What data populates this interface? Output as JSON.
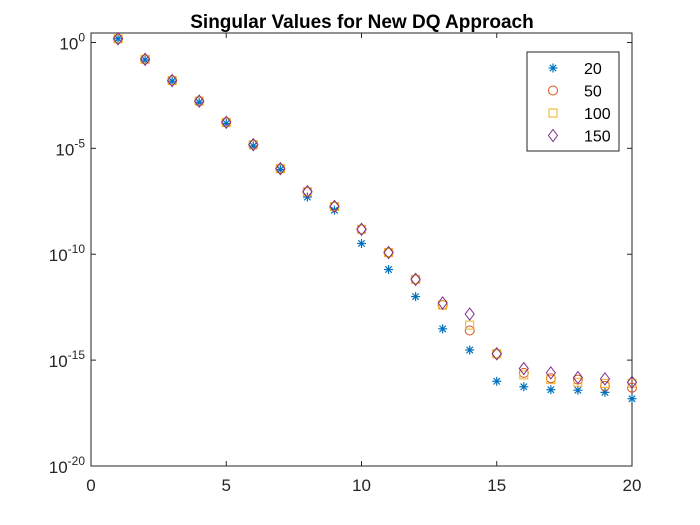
{
  "chart_data": {
    "type": "scatter",
    "title": "Singular Values for New DQ Approach",
    "xlabel": "",
    "ylabel": "",
    "xlim": [
      0,
      20
    ],
    "ylim": [
      1e-20,
      3
    ],
    "yscale": "log",
    "grid": false,
    "legend_position": "top-right",
    "x_ticks": [
      0,
      5,
      10,
      15,
      20
    ],
    "y_ticks": [
      {
        "base": "10",
        "exp": "0",
        "value": 1
      },
      {
        "base": "10",
        "exp": "-5",
        "value": 1e-05
      },
      {
        "base": "10",
        "exp": "-10",
        "value": 1e-10
      },
      {
        "base": "10",
        "exp": "-15",
        "value": 1e-15
      },
      {
        "base": "10",
        "exp": "-20",
        "value": 1e-20
      }
    ],
    "x": [
      1,
      2,
      3,
      4,
      5,
      6,
      7,
      8,
      9,
      10,
      11,
      12,
      13,
      14,
      15,
      16,
      17,
      18,
      19,
      20
    ],
    "series": [
      {
        "name": "20",
        "marker": "asterisk",
        "color": "#0072BD",
        "values": [
          1.5,
          0.15,
          0.015,
          0.0015,
          0.00015,
          1.3e-05,
          1e-06,
          5e-08,
          1.2e-08,
          3.2e-10,
          1.9e-11,
          1e-12,
          3e-14,
          3e-15,
          1e-16,
          5.5e-17,
          4e-17,
          3.8e-17,
          3e-17,
          1.5e-17
        ]
      },
      {
        "name": "50",
        "marker": "circle",
        "color": "#D95319",
        "values": [
          1.5,
          0.16,
          0.016,
          0.0017,
          0.00017,
          1.5e-05,
          1.1e-06,
          9e-08,
          1.8e-08,
          1.5e-09,
          1.2e-10,
          6.5e-12,
          4e-13,
          2.5e-14,
          2e-15,
          2.5e-16,
          1.4e-16,
          1.2e-16,
          6e-17,
          5e-17
        ]
      },
      {
        "name": "100",
        "marker": "square",
        "color": "#EDB120",
        "values": [
          1.5,
          0.16,
          0.016,
          0.0017,
          0.00017,
          1.5e-05,
          1.1e-06,
          9e-08,
          1.8e-08,
          1.5e-09,
          1.2e-10,
          6.5e-12,
          4e-13,
          4.5e-14,
          2e-15,
          2e-16,
          1.2e-16,
          9e-17,
          8e-17,
          8e-17
        ]
      },
      {
        "name": "150",
        "marker": "diamond",
        "color": "#7E2F8E",
        "values": [
          1.5,
          0.16,
          0.016,
          0.0017,
          0.00017,
          1.5e-05,
          1.1e-06,
          9e-08,
          1.8e-08,
          1.5e-09,
          1.2e-10,
          6.5e-12,
          5e-13,
          1.5e-13,
          2e-15,
          4e-16,
          2.5e-16,
          1.5e-16,
          1.3e-16,
          9e-17
        ]
      }
    ]
  }
}
